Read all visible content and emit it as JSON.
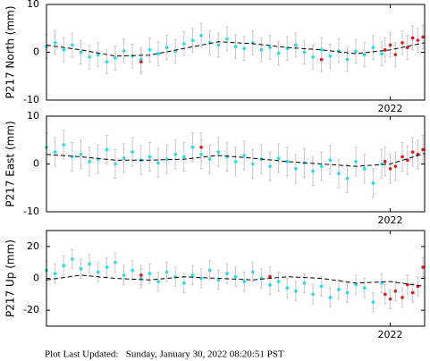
{
  "chart_data": [
    {
      "type": "scatter",
      "ylabel": "P217 North (mm)",
      "xlim": [
        2020,
        2022.2
      ],
      "xticks": [
        2022
      ],
      "ylim": [
        -10,
        10
      ],
      "yticks": [
        -10,
        0,
        10
      ],
      "series": [
        {
          "color": "#22dcee",
          "error": 2.5,
          "x": [
            2020.0,
            2020.05,
            2020.1,
            2020.15,
            2020.2,
            2020.25,
            2020.3,
            2020.35,
            2020.4,
            2020.45,
            2020.5,
            2020.55,
            2020.6,
            2020.65,
            2020.7,
            2020.75,
            2020.8,
            2020.85,
            2020.9,
            2020.95,
            2021.0,
            2021.05,
            2021.1,
            2021.15,
            2021.2,
            2021.25,
            2021.3,
            2021.35,
            2021.4,
            2021.45,
            2021.5,
            2021.55,
            2021.6,
            2021.65,
            2021.7,
            2021.75,
            2021.8,
            2021.85,
            2021.9,
            2021.95
          ],
          "values": [
            1.2,
            2.0,
            0.5,
            1.5,
            0.0,
            -1.0,
            -0.5,
            -2.0,
            -1.2,
            0.3,
            -0.8,
            -1.5,
            0.5,
            -0.3,
            1.0,
            0.2,
            1.8,
            2.5,
            3.5,
            2.0,
            1.5,
            2.8,
            1.2,
            0.8,
            2.0,
            0.5,
            1.0,
            -0.2,
            0.8,
            1.5,
            0.0,
            -1.0,
            0.5,
            -0.8,
            0.3,
            -1.5,
            0.2,
            -0.5,
            1.0,
            -0.3
          ]
        },
        {
          "color": "#e8141c",
          "error": 2.5,
          "x": [
            2020.55,
            2021.6,
            2021.97,
            2022.0,
            2022.03,
            2022.07,
            2022.1,
            2022.13,
            2022.16,
            2022.19
          ],
          "values": [
            -2,
            -1.5,
            0.5,
            1.5,
            -0.5,
            2.0,
            1.0,
            3.0,
            2.5,
            3.2
          ]
        },
        {
          "color": "#000000",
          "style": "dashed",
          "x": [
            2020,
            2020.2,
            2020.4,
            2020.6,
            2020.8,
            2021,
            2021.2,
            2021.4,
            2021.6,
            2021.8,
            2022,
            2022.2
          ],
          "values": [
            1.5,
            0.5,
            -0.8,
            -0.6,
            0.8,
            2.2,
            1.8,
            1.0,
            0.5,
            -0.3,
            0.5,
            2.0
          ]
        }
      ]
    },
    {
      "type": "scatter",
      "ylabel": "P217 East (mm)",
      "xlim": [
        2020,
        2022.2
      ],
      "xticks": [
        2022
      ],
      "ylim": [
        -10,
        10
      ],
      "yticks": [
        -10,
        0,
        10
      ],
      "series": [
        {
          "color": "#22dcee",
          "error": 3,
          "x": [
            2020.0,
            2020.05,
            2020.1,
            2020.15,
            2020.2,
            2020.25,
            2020.3,
            2020.35,
            2020.4,
            2020.45,
            2020.5,
            2020.55,
            2020.6,
            2020.65,
            2020.7,
            2020.75,
            2020.8,
            2020.85,
            2020.9,
            2020.95,
            2021.0,
            2021.05,
            2021.1,
            2021.15,
            2021.2,
            2021.25,
            2021.3,
            2021.35,
            2021.4,
            2021.45,
            2021.5,
            2021.55,
            2021.6,
            2021.65,
            2021.7,
            2021.75,
            2021.8,
            2021.85,
            2021.9,
            2021.95
          ],
          "values": [
            3.5,
            2.5,
            4.0,
            1.5,
            2.0,
            0.5,
            1.0,
            3.0,
            0.0,
            1.2,
            2.5,
            0.8,
            1.5,
            0.2,
            1.0,
            2.0,
            1.5,
            3.5,
            2.0,
            1.0,
            2.5,
            1.5,
            0.5,
            1.8,
            0.0,
            1.0,
            -0.5,
            1.2,
            0.5,
            -1.0,
            0.2,
            -1.5,
            -0.5,
            0.8,
            -2.0,
            -3.0,
            0.5,
            -1.0,
            -4.0,
            0.0
          ]
        },
        {
          "color": "#e8141c",
          "error": 3,
          "x": [
            2020.9,
            2021.97,
            2022.0,
            2022.03,
            2022.07,
            2022.1,
            2022.13,
            2022.16,
            2022.19
          ],
          "values": [
            3.5,
            0.5,
            -1.0,
            -0.5,
            1.5,
            0.8,
            2.5,
            2.0,
            3.0
          ]
        },
        {
          "color": "#000000",
          "style": "dashed",
          "x": [
            2020,
            2020.2,
            2020.4,
            2020.6,
            2020.8,
            2021,
            2021.2,
            2021.4,
            2021.6,
            2021.8,
            2022,
            2022.2
          ],
          "values": [
            2,
            1.5,
            0.8,
            0.8,
            1.0,
            1.8,
            1.2,
            0.5,
            0,
            -0.5,
            0,
            2.2
          ]
        }
      ]
    },
    {
      "type": "scatter",
      "ylabel": "P217 Up (mm)",
      "xlim": [
        2020,
        2022.2
      ],
      "xticks": [
        2022
      ],
      "ylim": [
        -30,
        30
      ],
      "yticks": [
        -20,
        0,
        20
      ],
      "series": [
        {
          "color": "#22dcee",
          "error": 6,
          "x": [
            2020.0,
            2020.05,
            2020.1,
            2020.15,
            2020.2,
            2020.25,
            2020.3,
            2020.35,
            2020.4,
            2020.45,
            2020.5,
            2020.55,
            2020.6,
            2020.65,
            2020.7,
            2020.75,
            2020.8,
            2020.85,
            2020.9,
            2020.95,
            2021.0,
            2021.05,
            2021.1,
            2021.15,
            2021.2,
            2021.25,
            2021.3,
            2021.35,
            2021.4,
            2021.45,
            2021.5,
            2021.55,
            2021.6,
            2021.65,
            2021.7,
            2021.75,
            2021.8,
            2021.85,
            2021.9,
            2021.95
          ],
          "values": [
            5,
            3,
            8,
            12,
            6,
            9,
            4,
            7,
            10,
            2,
            5,
            0,
            3,
            -2,
            4,
            1,
            -3,
            2,
            0,
            5,
            -1,
            3,
            1,
            -2,
            4,
            0,
            -4,
            -2,
            -6,
            -8,
            -3,
            -10,
            -5,
            -12,
            -7,
            -9,
            -4,
            -6,
            -15,
            -3
          ]
        },
        {
          "color": "#e8141c",
          "error": 6,
          "x": [
            2020.55,
            2021.3,
            2021.97,
            2022.0,
            2022.03,
            2022.07,
            2022.1,
            2022.13,
            2022.16,
            2022.19
          ],
          "values": [
            2,
            1,
            -10,
            -13,
            -8,
            -12,
            -4,
            -9,
            -5,
            7
          ]
        },
        {
          "color": "#000000",
          "style": "dashed",
          "x": [
            2020,
            2020.2,
            2020.4,
            2020.6,
            2020.8,
            2021,
            2021.2,
            2021.4,
            2021.6,
            2021.8,
            2022,
            2022.2
          ],
          "values": [
            -1,
            2,
            0,
            -1,
            1,
            0,
            -1,
            1,
            0,
            -3,
            -2,
            -5
          ]
        }
      ]
    }
  ],
  "footer": "Plot Last Updated:   Sunday, January 30, 2022 08:20:51 PST"
}
